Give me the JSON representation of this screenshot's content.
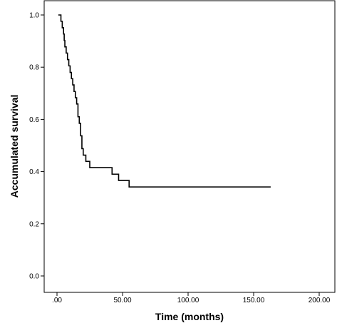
{
  "chart_data": {
    "type": "line",
    "title": "",
    "xlabel": "Time (months)",
    "ylabel": "Accumulated survival",
    "xlim": [
      0,
      200
    ],
    "ylim": [
      0,
      1
    ],
    "x_ticks": [
      0,
      50,
      100,
      150,
      200
    ],
    "x_tick_labels": [
      ".00",
      "50.00",
      "100.00",
      "150.00",
      "200.00"
    ],
    "y_ticks": [
      0,
      0.2,
      0.4,
      0.6,
      0.8,
      1.0
    ],
    "y_tick_labels": [
      "0.0",
      "0.2",
      "0.4",
      "0.6",
      "0.8",
      "1.0"
    ],
    "grid": false,
    "series": [
      {
        "step": true,
        "color": "#000000",
        "x": [
          1,
          3,
          4,
          5,
          5.5,
          6,
          7,
          8,
          9,
          10,
          11,
          12,
          13,
          14,
          15,
          16,
          17,
          18,
          19,
          20,
          22,
          25,
          29,
          42,
          47,
          55,
          163
        ],
        "y": [
          1.0,
          0.976,
          0.951,
          0.927,
          0.902,
          0.878,
          0.854,
          0.829,
          0.805,
          0.78,
          0.756,
          0.732,
          0.707,
          0.683,
          0.659,
          0.61,
          0.585,
          0.537,
          0.488,
          0.463,
          0.439,
          0.415,
          0.415,
          0.39,
          0.366,
          0.341,
          0.341
        ]
      }
    ]
  }
}
